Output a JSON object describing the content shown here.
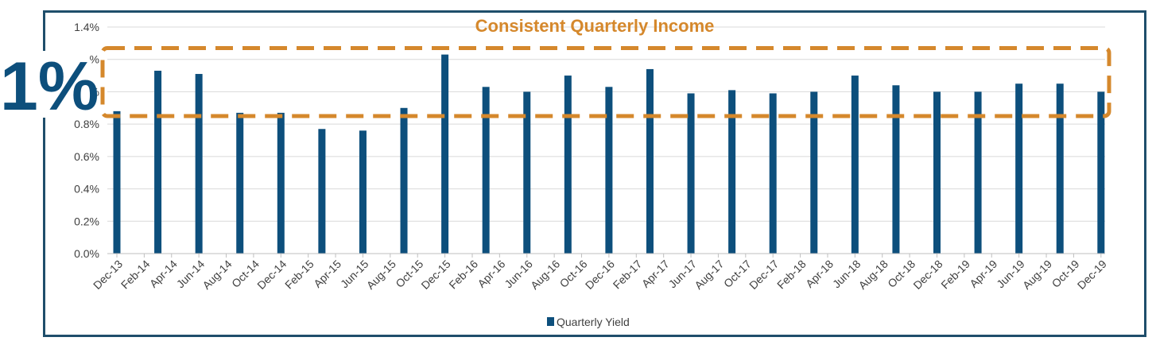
{
  "chart_data": {
    "type": "bar",
    "title": "Consistent Quarterly Income",
    "annotation": "1%",
    "xlabel": "",
    "ylabel": "",
    "ylim": [
      0,
      1.4
    ],
    "yticks": [
      "0.0%",
      "0.2%",
      "0.4%",
      "0.6%",
      "0.8%",
      "1.0%",
      "1.2%",
      "1.4%"
    ],
    "grid": true,
    "legend_position": "bottom",
    "categories": [
      "Dec-13",
      "Feb-14",
      "Apr-14",
      "Jun-14",
      "Aug-14",
      "Oct-14",
      "Dec-14",
      "Feb-15",
      "Apr-15",
      "Jun-15",
      "Aug-15",
      "Oct-15",
      "Dec-15",
      "Feb-16",
      "Apr-16",
      "Jun-16",
      "Aug-16",
      "Oct-16",
      "Dec-16",
      "Feb-17",
      "Apr-17",
      "Jun-17",
      "Aug-17",
      "Oct-17",
      "Dec-17",
      "Feb-18",
      "Apr-18",
      "Jun-18",
      "Aug-18",
      "Oct-18",
      "Dec-18",
      "Feb-19",
      "Apr-19",
      "Jun-19",
      "Aug-19",
      "Oct-19",
      "Dec-19"
    ],
    "series": [
      {
        "name": "Quarterly Yield",
        "color": "#0d4f7c",
        "x": [
          "Dec-13",
          "Mar-14",
          "Jun-14",
          "Sep-14",
          "Dec-14",
          "Mar-15",
          "Jun-15",
          "Sep-15",
          "Dec-15",
          "Mar-16",
          "Jun-16",
          "Sep-16",
          "Dec-16",
          "Mar-17",
          "Jun-17",
          "Sep-17",
          "Dec-17",
          "Mar-18",
          "Jun-18",
          "Sep-18",
          "Dec-18",
          "Mar-19",
          "Jun-19",
          "Sep-19",
          "Dec-19"
        ],
        "values": [
          0.88,
          1.13,
          1.11,
          0.87,
          0.87,
          0.77,
          0.76,
          0.9,
          1.23,
          1.03,
          1.0,
          1.1,
          1.03,
          1.14,
          0.99,
          1.01,
          0.99,
          1.0,
          1.1,
          1.04,
          1.0,
          1.0,
          1.05,
          1.05,
          1.0
        ]
      }
    ],
    "colors": {
      "bar": "#0d4f7c",
      "highlight": "#d5882c",
      "frame": "#1f4e6b",
      "grid": "#d9d9d9",
      "axis": "#bfbfbf"
    }
  }
}
